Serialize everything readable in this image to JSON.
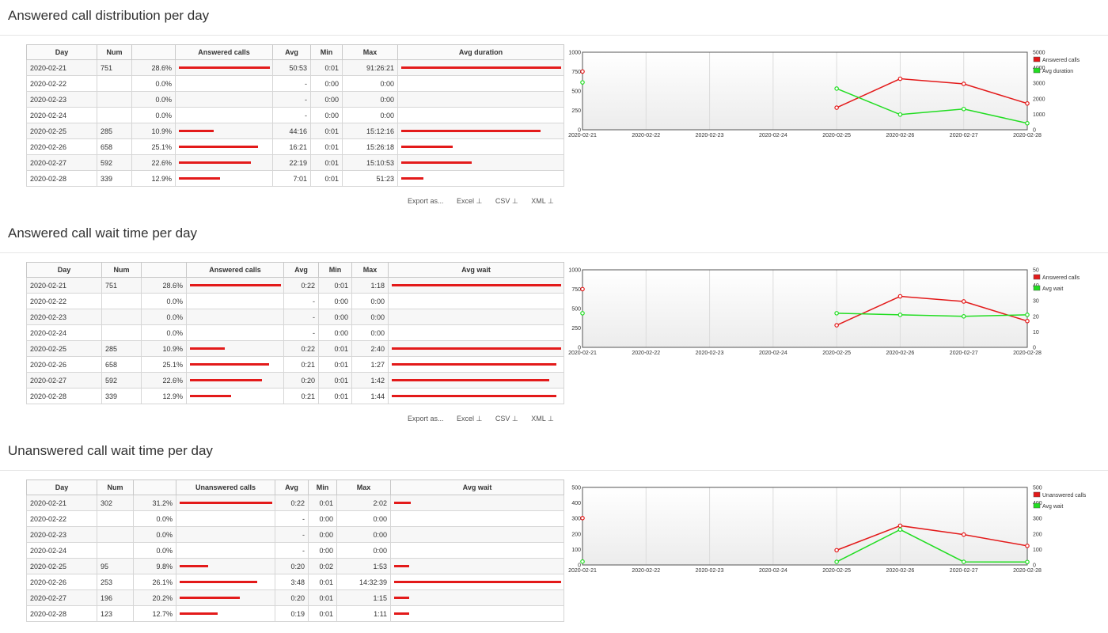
{
  "export": {
    "label": "Export as...",
    "excel": "Excel ⊥",
    "csv": "CSV ⊥",
    "xml": "XML ⊥"
  },
  "sections": [
    {
      "title": "Answered call distribution per day",
      "headers": [
        "Day",
        "Num",
        "",
        "Answered calls",
        "Avg",
        "Min",
        "Max",
        "Avg duration"
      ],
      "rows": [
        {
          "day": "2020-02-21",
          "num": "751",
          "pct": "28.6%",
          "frac": 1.0,
          "avg": "50:53",
          "min": "0:01",
          "max": "91:26:21",
          "frac2": 1.0
        },
        {
          "day": "2020-02-22",
          "num": "",
          "pct": "0.0%",
          "frac": 0,
          "avg": "-",
          "min": "0:00",
          "max": "0:00",
          "frac2": 0
        },
        {
          "day": "2020-02-23",
          "num": "",
          "pct": "0.0%",
          "frac": 0,
          "avg": "-",
          "min": "0:00",
          "max": "0:00",
          "frac2": 0
        },
        {
          "day": "2020-02-24",
          "num": "",
          "pct": "0.0%",
          "frac": 0,
          "avg": "-",
          "min": "0:00",
          "max": "0:00",
          "frac2": 0
        },
        {
          "day": "2020-02-25",
          "num": "285",
          "pct": "10.9%",
          "frac": 0.38,
          "avg": "44:16",
          "min": "0:01",
          "max": "15:12:16",
          "frac2": 0.87
        },
        {
          "day": "2020-02-26",
          "num": "658",
          "pct": "25.1%",
          "frac": 0.87,
          "avg": "16:21",
          "min": "0:01",
          "max": "15:26:18",
          "frac2": 0.32
        },
        {
          "day": "2020-02-27",
          "num": "592",
          "pct": "22.6%",
          "frac": 0.79,
          "avg": "22:19",
          "min": "0:01",
          "max": "15:10:53",
          "frac2": 0.44
        },
        {
          "day": "2020-02-28",
          "num": "339",
          "pct": "12.9%",
          "frac": 0.45,
          "avg": "7:01",
          "min": "0:01",
          "max": "51:23",
          "frac2": 0.14
        }
      ],
      "chart_data": {
        "type": "line",
        "x": [
          "2020-02-21",
          "2020-02-22",
          "2020-02-23",
          "2020-02-24",
          "2020-02-25",
          "2020-02-26",
          "2020-02-27",
          "2020-02-28"
        ],
        "yTicks": [
          "0",
          "250",
          "500",
          "750",
          "1000"
        ],
        "yMax": 1000,
        "y2Ticks": [
          "0",
          "1000",
          "2000",
          "3000",
          "4000",
          "5000"
        ],
        "y2Max": 5000,
        "grid": true,
        "legend": "top-right",
        "series": [
          {
            "name": "Answered calls",
            "axis": "left",
            "color": "#e31a1a",
            "values": [
              751,
              null,
              null,
              null,
              285,
              658,
              592,
              339
            ]
          },
          {
            "name": "Avg duration",
            "axis": "right",
            "color": "#22dd22",
            "values": [
              3053,
              null,
              null,
              null,
              2656,
              981,
              1339,
              421
            ]
          }
        ]
      }
    },
    {
      "title": "Answered call wait time per day",
      "headers": [
        "Day",
        "Num",
        "",
        "Answered calls",
        "Avg",
        "Min",
        "Max",
        "Avg wait"
      ],
      "rows": [
        {
          "day": "2020-02-21",
          "num": "751",
          "pct": "28.6%",
          "frac": 1.0,
          "avg": "0:22",
          "min": "0:01",
          "max": "1:18",
          "frac2": 1.0
        },
        {
          "day": "2020-02-22",
          "num": "",
          "pct": "0.0%",
          "frac": 0,
          "avg": "-",
          "min": "0:00",
          "max": "0:00",
          "frac2": 0
        },
        {
          "day": "2020-02-23",
          "num": "",
          "pct": "0.0%",
          "frac": 0,
          "avg": "-",
          "min": "0:00",
          "max": "0:00",
          "frac2": 0
        },
        {
          "day": "2020-02-24",
          "num": "",
          "pct": "0.0%",
          "frac": 0,
          "avg": "-",
          "min": "0:00",
          "max": "0:00",
          "frac2": 0
        },
        {
          "day": "2020-02-25",
          "num": "285",
          "pct": "10.9%",
          "frac": 0.38,
          "avg": "0:22",
          "min": "0:01",
          "max": "2:40",
          "frac2": 1.0
        },
        {
          "day": "2020-02-26",
          "num": "658",
          "pct": "25.1%",
          "frac": 0.87,
          "avg": "0:21",
          "min": "0:01",
          "max": "1:27",
          "frac2": 0.97
        },
        {
          "day": "2020-02-27",
          "num": "592",
          "pct": "22.6%",
          "frac": 0.79,
          "avg": "0:20",
          "min": "0:01",
          "max": "1:42",
          "frac2": 0.93
        },
        {
          "day": "2020-02-28",
          "num": "339",
          "pct": "12.9%",
          "frac": 0.45,
          "avg": "0:21",
          "min": "0:01",
          "max": "1:44",
          "frac2": 0.97
        }
      ],
      "chart_data": {
        "type": "line",
        "x": [
          "2020-02-21",
          "2020-02-22",
          "2020-02-23",
          "2020-02-24",
          "2020-02-25",
          "2020-02-26",
          "2020-02-27",
          "2020-02-28"
        ],
        "yTicks": [
          "0",
          "250",
          "500",
          "750",
          "1000"
        ],
        "yMax": 1000,
        "y2Ticks": [
          "0",
          "10",
          "20",
          "30",
          "40",
          "50"
        ],
        "y2Max": 50,
        "grid": true,
        "legend": "top-right",
        "series": [
          {
            "name": "Answered calls",
            "axis": "left",
            "color": "#e31a1a",
            "values": [
              751,
              null,
              null,
              null,
              285,
              658,
              592,
              339
            ]
          },
          {
            "name": "Avg wait",
            "axis": "right",
            "color": "#22dd22",
            "values": [
              22,
              null,
              null,
              null,
              22,
              21,
              20,
              21
            ]
          }
        ]
      }
    },
    {
      "title": "Unanswered call wait time per day",
      "headers": [
        "Day",
        "Num",
        "",
        "Unanswered calls",
        "Avg",
        "Min",
        "Max",
        "Avg wait"
      ],
      "rows": [
        {
          "day": "2020-02-21",
          "num": "302",
          "pct": "31.2%",
          "frac": 1.0,
          "avg": "0:22",
          "min": "0:01",
          "max": "2:02",
          "frac2": 0.1
        },
        {
          "day": "2020-02-22",
          "num": "",
          "pct": "0.0%",
          "frac": 0,
          "avg": "-",
          "min": "0:00",
          "max": "0:00",
          "frac2": 0
        },
        {
          "day": "2020-02-23",
          "num": "",
          "pct": "0.0%",
          "frac": 0,
          "avg": "-",
          "min": "0:00",
          "max": "0:00",
          "frac2": 0
        },
        {
          "day": "2020-02-24",
          "num": "",
          "pct": "0.0%",
          "frac": 0,
          "avg": "-",
          "min": "0:00",
          "max": "0:00",
          "frac2": 0
        },
        {
          "day": "2020-02-25",
          "num": "95",
          "pct": "9.8%",
          "frac": 0.31,
          "avg": "0:20",
          "min": "0:02",
          "max": "1:53",
          "frac2": 0.09
        },
        {
          "day": "2020-02-26",
          "num": "253",
          "pct": "26.1%",
          "frac": 0.84,
          "avg": "3:48",
          "min": "0:01",
          "max": "14:32:39",
          "frac2": 1.0
        },
        {
          "day": "2020-02-27",
          "num": "196",
          "pct": "20.2%",
          "frac": 0.65,
          "avg": "0:20",
          "min": "0:01",
          "max": "1:15",
          "frac2": 0.09
        },
        {
          "day": "2020-02-28",
          "num": "123",
          "pct": "12.7%",
          "frac": 0.41,
          "avg": "0:19",
          "min": "0:01",
          "max": "1:11",
          "frac2": 0.09
        }
      ],
      "chart_data": {
        "type": "line",
        "x": [
          "2020-02-21",
          "2020-02-22",
          "2020-02-23",
          "2020-02-24",
          "2020-02-25",
          "2020-02-26",
          "2020-02-27",
          "2020-02-28"
        ],
        "yTicks": [
          "0",
          "100",
          "200",
          "300",
          "400",
          "500"
        ],
        "yMax": 500,
        "y2Ticks": [
          "0",
          "100",
          "200",
          "300",
          "400",
          "500"
        ],
        "y2Max": 500,
        "grid": true,
        "legend": "top-right",
        "series": [
          {
            "name": "Unanswered calls",
            "axis": "left",
            "color": "#e31a1a",
            "values": [
              302,
              null,
              null,
              null,
              95,
              253,
              196,
              123
            ]
          },
          {
            "name": "Avg wait",
            "axis": "right",
            "color": "#22dd22",
            "values": [
              22,
              null,
              null,
              null,
              20,
              228,
              20,
              19
            ]
          }
        ]
      }
    }
  ]
}
